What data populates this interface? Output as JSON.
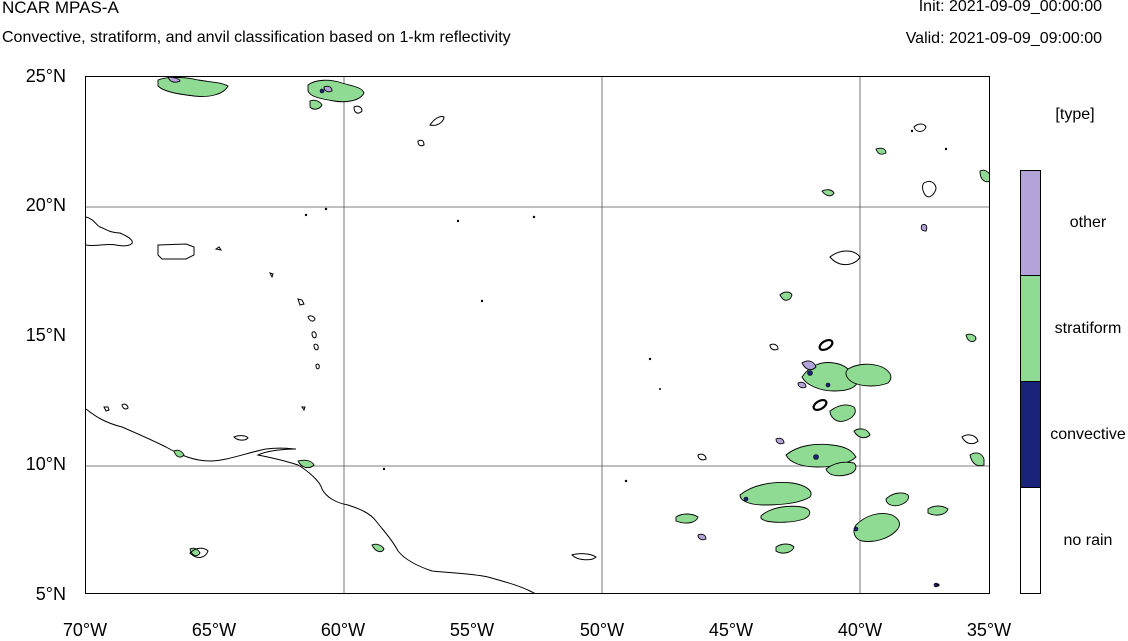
{
  "header": {
    "title": "NCAR MPAS-A",
    "subtitle": "Convective, stratiform, and anvil classification based on 1-km reflectivity",
    "init": "Init: 2021-09-09_00:00:00",
    "valid": "Valid: 2021-09-09_09:00:00"
  },
  "axes": {
    "lat_labels": [
      "25°N",
      "20°N",
      "15°N",
      "10°N",
      "5°N"
    ],
    "lon_labels": [
      "70°W",
      "65°W",
      "60°W",
      "55°W",
      "50°W",
      "45°W",
      "40°W",
      "35°W"
    ],
    "lat_range": [
      5,
      25
    ],
    "lon_range": [
      -70,
      -35
    ],
    "grid": true
  },
  "legend": {
    "title": "[type]",
    "items": [
      {
        "label": "other",
        "color": "#b3a3d9"
      },
      {
        "label": "stratiform",
        "color": "#8fdb94"
      },
      {
        "label": "convective",
        "color": "#1a237a"
      },
      {
        "label": "no rain",
        "color": "#ffffff"
      }
    ]
  },
  "colors": {
    "outline": "#000000",
    "grid": "#555555",
    "stratiform": "#8fdb94",
    "other": "#b3a3d9",
    "convective": "#1a237a"
  }
}
